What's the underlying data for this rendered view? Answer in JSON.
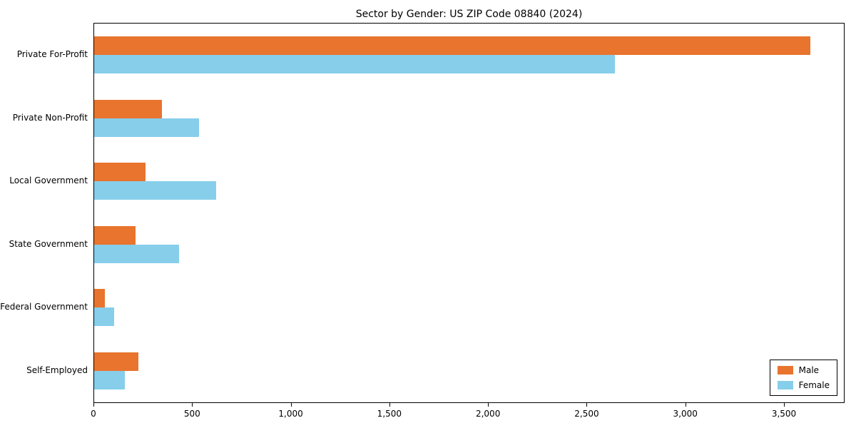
{
  "chart_data": {
    "type": "bar",
    "orientation": "horizontal",
    "title": "Sector by Gender: US ZIP Code 08840 (2024)",
    "categories": [
      "Private For-Profit",
      "Private Non-Profit",
      "Local Government",
      "State Government",
      "Federal Government",
      "Self-Employed"
    ],
    "series": [
      {
        "name": "Male",
        "color": "#e8742e",
        "values": [
          3630,
          345,
          260,
          210,
          55,
          225
        ]
      },
      {
        "name": "Female",
        "color": "#87ceeb",
        "values": [
          2640,
          530,
          620,
          430,
          100,
          155
        ]
      }
    ],
    "xlim": [
      0,
      3800
    ],
    "xticks": [
      0,
      500,
      1000,
      1500,
      2000,
      2500,
      3000,
      3500
    ],
    "xtick_labels": [
      "0",
      "500",
      "1,000",
      "1,500",
      "2,000",
      "2,500",
      "3,000",
      "3,500"
    ],
    "xlabel": "",
    "ylabel": "",
    "grid": false,
    "legend_position": "lower right"
  }
}
